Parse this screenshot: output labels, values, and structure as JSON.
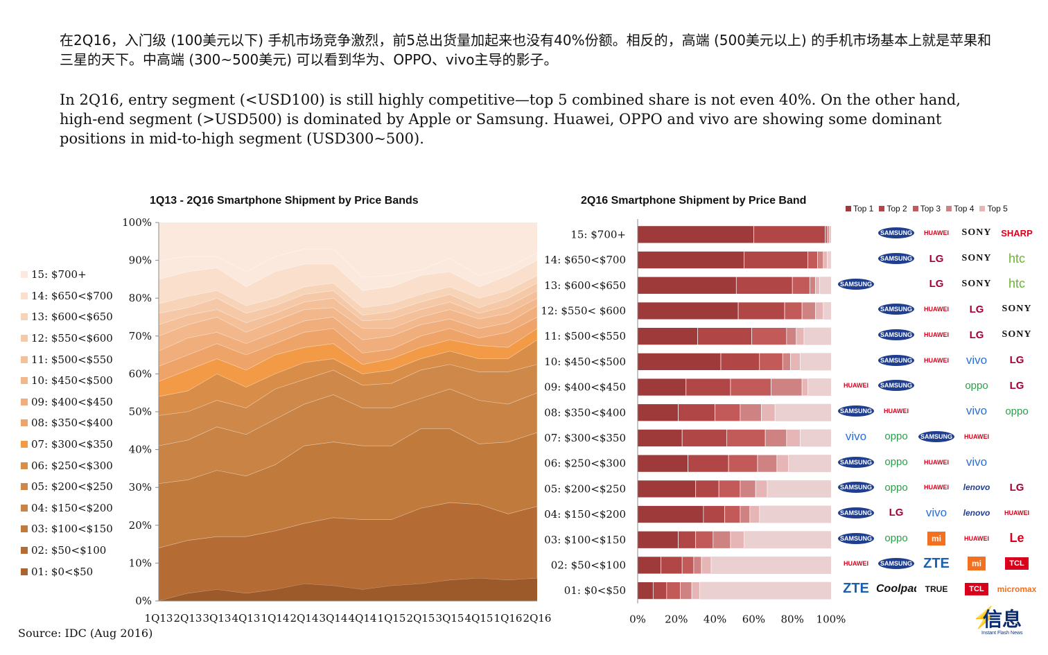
{
  "text": {
    "zh": "在2Q16，入门级 (100美元以下) 手机市场竞争激烈，前5总出货量加起来也没有40%份额。相反的，高端 (500美元以上) 的手机市场基本上就是苹果和三星的天下。中高端 (300~500美元) 可以看到华为、OPPO、vivo主导的影子。",
    "en": "In 2Q16, entry segment (<USD100) is still highly competitive—top 5 combined share is not even 40%. On the other hand, high-end segment (>USD500) is dominated by Apple or Samsung. Huawei, OPPO and vivo are showing some dominant positions in mid-to-high segment (USD300~500).",
    "source": "Source: IDC (Aug 2016)"
  },
  "chart_data": [
    {
      "type": "area",
      "title": "1Q13 - 2Q16 Smartphone Shipment by Price Bands",
      "x": [
        "1Q13",
        "2Q13",
        "3Q13",
        "4Q13",
        "1Q14",
        "2Q14",
        "3Q14",
        "4Q14",
        "1Q15",
        "2Q15",
        "3Q15",
        "4Q15",
        "1Q16",
        "2Q16"
      ],
      "ylim": [
        0,
        100
      ],
      "yticks": [
        "0%",
        "10%",
        "20%",
        "30%",
        "40%",
        "50%",
        "60%",
        "70%",
        "80%",
        "90%",
        "100%"
      ],
      "stacked_percent": true,
      "series_cumulative_upper_pct": [
        {
          "name": "01: $0<$50",
          "values": [
            0,
            2,
            3,
            2,
            3,
            4.5,
            4,
            3,
            4,
            4.5,
            5.5,
            6,
            5.5,
            6
          ]
        },
        {
          "name": "02: $50<$100",
          "values": [
            14,
            16,
            17,
            17,
            18.5,
            20.5,
            22,
            21.5,
            21.5,
            24.5,
            26,
            25.5,
            23,
            25
          ]
        },
        {
          "name": "03: $100<$150",
          "values": [
            31,
            32,
            34.5,
            33,
            36,
            41,
            42,
            41,
            41,
            45.5,
            45.5,
            41.5,
            42,
            44.5
          ]
        },
        {
          "name": "04: $150<$200",
          "values": [
            41,
            42.5,
            46,
            44,
            48,
            52,
            54.5,
            51,
            51,
            53.5,
            56,
            53,
            52,
            55
          ]
        },
        {
          "name": "05: $200<$250",
          "values": [
            49,
            50,
            53,
            51,
            56,
            58.5,
            61,
            57,
            57.5,
            61,
            62.5,
            60.5,
            60.5,
            62.5
          ]
        },
        {
          "name": "06: $250<$300",
          "values": [
            54,
            55.5,
            60,
            56.5,
            60,
            63,
            64,
            60,
            61,
            64,
            66,
            64,
            64,
            69
          ]
        },
        {
          "name": "07: $300<$350",
          "values": [
            58,
            61,
            64,
            61,
            65,
            67,
            68,
            62.5,
            64,
            67,
            69,
            67.5,
            67,
            72
          ]
        },
        {
          "name": "08: $350<$400",
          "values": [
            62,
            65,
            68,
            65,
            68,
            71,
            72,
            65.5,
            66.5,
            70,
            72,
            69.5,
            71,
            75
          ]
        },
        {
          "name": "09: $400<$450",
          "values": [
            66,
            69.5,
            71,
            68,
            71,
            74,
            75,
            69,
            70,
            73,
            74.5,
            72,
            73.5,
            78
          ]
        },
        {
          "name": "10: $450<$500",
          "values": [
            70,
            73,
            75,
            71,
            74,
            77,
            77.5,
            72,
            72,
            75,
            77,
            74.5,
            76,
            80
          ]
        },
        {
          "name": "11: $500<$550",
          "values": [
            73,
            75.5,
            77,
            73.5,
            76,
            79,
            80,
            74,
            74.5,
            77,
            79,
            76,
            78,
            82
          ]
        },
        {
          "name": "12: $550<$600",
          "values": [
            76,
            77.5,
            80,
            76,
            78,
            81,
            82,
            75.5,
            76.5,
            79,
            81,
            77.5,
            80,
            84
          ]
        },
        {
          "name": "13: $600<$650",
          "values": [
            78.5,
            80.5,
            82,
            78,
            80,
            83,
            84,
            77.5,
            78.5,
            81,
            83,
            80,
            82,
            86
          ]
        },
        {
          "name": "14: $650<$700",
          "values": [
            85,
            87,
            88,
            83,
            87,
            89,
            89,
            82,
            83,
            86,
            87,
            83,
            86,
            90
          ]
        },
        {
          "name": "15: $700+",
          "values": [
            90,
            91,
            91,
            87,
            91,
            93,
            93,
            85.5,
            86,
            87.5,
            90.5,
            86,
            88,
            92
          ]
        }
      ],
      "colors": [
        "#9c5a2a",
        "#aa6430",
        "#b46c34",
        "#c07a3c",
        "#c98445",
        "#cd884a",
        "#d88d48",
        "#f39a47",
        "#eea468",
        "#f0ae7c",
        "#f2b78b",
        "#f3c09a",
        "#f5c9a8",
        "#f7d3b8",
        "#f9dfcc",
        "#fbe9dd"
      ]
    },
    {
      "type": "bar",
      "stacked": true,
      "orientation": "horizontal",
      "title": "2Q16 Smartphone Shipment by Price Band",
      "xticks": [
        "0%",
        "20%",
        "40%",
        "60%",
        "80%",
        "100%"
      ],
      "categories": [
        "15: $700+",
        "14: $650<$700",
        "13: $600<$650",
        "12: $550< $600",
        "11: $500<$550",
        "10: $450<$500",
        "09: $400<$450",
        "08: $350<$400",
        "07: $300<$350",
        "06: $250<$300",
        "05: $200<$250",
        "04: $150<$200",
        "03: $100<$150",
        "02: $50<$100",
        "01: $0<$50"
      ],
      "series": [
        {
          "name": "Top 1",
          "values": [
            60,
            55,
            51,
            52,
            31,
            43,
            25,
            21,
            23,
            26,
            30,
            34,
            21,
            12,
            8
          ]
        },
        {
          "name": "Top 2",
          "values": [
            37,
            33,
            29,
            24,
            28,
            20,
            23,
            19,
            23,
            21,
            12,
            11,
            9,
            11,
            7
          ]
        },
        {
          "name": "Top 3",
          "values": [
            1,
            5,
            9,
            9,
            18,
            12,
            21,
            13,
            20,
            15,
            11,
            8,
            9,
            6,
            7
          ]
        },
        {
          "name": "Top 4",
          "values": [
            1,
            3,
            3,
            7,
            5,
            4,
            16,
            11,
            11,
            10,
            8,
            5,
            9,
            4,
            6
          ]
        },
        {
          "name": "Top 5",
          "values": [
            1,
            2,
            2,
            4,
            4,
            5,
            3,
            7,
            7,
            6,
            6,
            5,
            7,
            5,
            4
          ]
        }
      ],
      "remainder_color": "#ead0d1",
      "colors": [
        "#9e3a3a",
        "#b04646",
        "#c25a5a",
        "#cf8282",
        "#e6b6b6"
      ]
    }
  ],
  "legend_left": [
    "15: $700+",
    "14: $650<$700",
    "13: $600<$650",
    "12: $550<$600",
    "11: $500<$550",
    "10: $450<$500",
    "09: $400<$450",
    "08: $350<$400",
    "07: $300<$350",
    "06: $250<$300",
    "05: $200<$250",
    "04: $150<$200",
    "03: $100<$150",
    "02: $50<$100",
    "01: $0<$50"
  ],
  "legend_right": [
    "Top 1",
    "Top 2",
    "Top 3",
    "Top 4",
    "Top 5"
  ],
  "brands": [
    [
      {
        "k": "apple",
        "t": ""
      },
      {
        "k": "samsung",
        "t": "SAMSUNG"
      },
      {
        "k": "huawei",
        "t": "HUAWEI"
      },
      {
        "k": "sony",
        "t": "SONY"
      },
      {
        "k": "sharp",
        "t": "SHARP"
      }
    ],
    [
      {
        "k": "apple",
        "t": ""
      },
      {
        "k": "samsung",
        "t": "SAMSUNG"
      },
      {
        "k": "lg",
        "t": "LG"
      },
      {
        "k": "sony",
        "t": "SONY"
      },
      {
        "k": "htc",
        "t": "htc"
      }
    ],
    [
      {
        "k": "samsung",
        "t": "SAMSUNG"
      },
      {
        "k": "apple",
        "t": ""
      },
      {
        "k": "lg",
        "t": "LG"
      },
      {
        "k": "sony",
        "t": "SONY"
      },
      {
        "k": "htc",
        "t": "htc"
      }
    ],
    [
      {
        "k": "apple",
        "t": ""
      },
      {
        "k": "samsung",
        "t": "SAMSUNG"
      },
      {
        "k": "huawei",
        "t": "HUAWEI"
      },
      {
        "k": "lg",
        "t": "LG"
      },
      {
        "k": "sony",
        "t": "SONY"
      }
    ],
    [
      {
        "k": "apple",
        "t": ""
      },
      {
        "k": "samsung",
        "t": "SAMSUNG"
      },
      {
        "k": "huawei",
        "t": "HUAWEI"
      },
      {
        "k": "lg",
        "t": "LG"
      },
      {
        "k": "sony",
        "t": "SONY"
      }
    ],
    [
      {
        "k": "apple",
        "t": ""
      },
      {
        "k": "samsung",
        "t": "SAMSUNG"
      },
      {
        "k": "huawei",
        "t": "HUAWEI"
      },
      {
        "k": "vivo",
        "t": "vivo"
      },
      {
        "k": "lg",
        "t": "LG"
      }
    ],
    [
      {
        "k": "huawei",
        "t": "HUAWEI"
      },
      {
        "k": "samsung",
        "t": "SAMSUNG"
      },
      {
        "k": "apple",
        "t": ""
      },
      {
        "k": "oppo",
        "t": "oppo"
      },
      {
        "k": "lg",
        "t": "LG"
      }
    ],
    [
      {
        "k": "samsung",
        "t": "SAMSUNG"
      },
      {
        "k": "huawei",
        "t": "HUAWEI"
      },
      {
        "k": "apple",
        "t": ""
      },
      {
        "k": "vivo",
        "t": "vivo"
      },
      {
        "k": "oppo",
        "t": "oppo"
      }
    ],
    [
      {
        "k": "vivo",
        "t": "vivo"
      },
      {
        "k": "oppo",
        "t": "oppo"
      },
      {
        "k": "samsung",
        "t": "SAMSUNG"
      },
      {
        "k": "huawei",
        "t": "HUAWEI"
      },
      {
        "k": "apple",
        "t": ""
      }
    ],
    [
      {
        "k": "samsung",
        "t": "SAMSUNG"
      },
      {
        "k": "oppo",
        "t": "oppo"
      },
      {
        "k": "huawei",
        "t": "HUAWEI"
      },
      {
        "k": "vivo",
        "t": "vivo"
      },
      {
        "k": "apple",
        "t": ""
      }
    ],
    [
      {
        "k": "samsung",
        "t": "SAMSUNG"
      },
      {
        "k": "oppo",
        "t": "oppo"
      },
      {
        "k": "huawei",
        "t": "HUAWEI"
      },
      {
        "k": "lenovo",
        "t": "lenovo"
      },
      {
        "k": "lg",
        "t": "LG"
      }
    ],
    [
      {
        "k": "samsung",
        "t": "SAMSUNG"
      },
      {
        "k": "lg",
        "t": "LG"
      },
      {
        "k": "vivo",
        "t": "vivo"
      },
      {
        "k": "lenovo",
        "t": "lenovo"
      },
      {
        "k": "huawei",
        "t": "HUAWEI"
      }
    ],
    [
      {
        "k": "samsung",
        "t": "SAMSUNG"
      },
      {
        "k": "oppo",
        "t": "oppo"
      },
      {
        "k": "mi",
        "t": "mi"
      },
      {
        "k": "huawei",
        "t": "HUAWEI"
      },
      {
        "k": "le",
        "t": "Le"
      }
    ],
    [
      {
        "k": "huawei",
        "t": "HUAWEI"
      },
      {
        "k": "samsung",
        "t": "SAMSUNG"
      },
      {
        "k": "zte",
        "t": "ZTE"
      },
      {
        "k": "mi",
        "t": "mi"
      },
      {
        "k": "tcl",
        "t": "TCL"
      }
    ],
    [
      {
        "k": "zte",
        "t": "ZTE"
      },
      {
        "k": "coolpad",
        "t": "Coolpad"
      },
      {
        "k": "true",
        "t": "TRUE"
      },
      {
        "k": "tcl",
        "t": "TCL"
      },
      {
        "k": "micromax",
        "t": "micromax"
      }
    ]
  ],
  "watermark": {
    "title": "信息",
    "sub": "Instant Flash News"
  }
}
